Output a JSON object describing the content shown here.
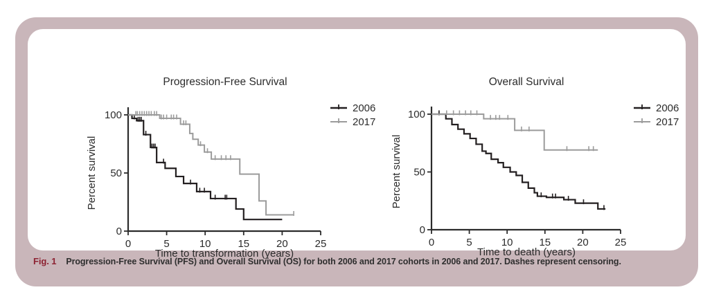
{
  "frame": {
    "fill": "#c9b6ba",
    "panel_fill": "#ffffff"
  },
  "caption": {
    "label": "Fig. 1",
    "label_color": "#8d2232",
    "text": "Progression-Free Survival (PFS) and Overall Survival (OS) for both 2006 and 2017 cohorts in 2006 and 2017.  Dashes represent censoring."
  },
  "chart_data": [
    {
      "type": "line",
      "subtype": "kaplan-meier-step",
      "title": "Progression-Free Survival",
      "xlabel": "Time to transformation (years)",
      "ylabel": "Percent survival",
      "xlim": [
        0,
        25
      ],
      "ylim": [
        0,
        100
      ],
      "xticks": [
        0,
        5,
        10,
        15,
        20,
        25
      ],
      "yticks": [
        0,
        50,
        100
      ],
      "grid": false,
      "legend_position": "right-of-plot-top",
      "series": [
        {
          "name": "2006",
          "color": "#231f20",
          "end_x": 20,
          "steps": [
            [
              0,
              100
            ],
            [
              0.5,
              97
            ],
            [
              1.1,
              95
            ],
            [
              2,
              83
            ],
            [
              2.9,
              72
            ],
            [
              3.7,
              59
            ],
            [
              4.8,
              54
            ],
            [
              6.2,
              47
            ],
            [
              7.2,
              41
            ],
            [
              8.9,
              34
            ],
            [
              10.7,
              28
            ],
            [
              14,
              19
            ],
            [
              15,
              10
            ]
          ],
          "censor_marks": [
            [
              0.8,
              97
            ],
            [
              1.3,
              95
            ],
            [
              1.5,
              95
            ],
            [
              1.7,
              95
            ],
            [
              2.3,
              83
            ],
            [
              3.1,
              72
            ],
            [
              3.3,
              72
            ],
            [
              3.5,
              72
            ],
            [
              4.6,
              59
            ],
            [
              8.1,
              41
            ],
            [
              9.3,
              34
            ],
            [
              9.9,
              34
            ],
            [
              11.3,
              28
            ],
            [
              12.6,
              28
            ],
            [
              12.8,
              28
            ]
          ]
        },
        {
          "name": "2017",
          "color": "#9b9b9b",
          "end_x": 21.5,
          "steps": [
            [
              0,
              100
            ],
            [
              4.1,
              97
            ],
            [
              6.8,
              92
            ],
            [
              8,
              84
            ],
            [
              8.4,
              79
            ],
            [
              9.1,
              74
            ],
            [
              9.9,
              68
            ],
            [
              10.8,
              62
            ],
            [
              14.5,
              49
            ],
            [
              17,
              26
            ],
            [
              17.9,
              14
            ]
          ],
          "censor_marks": [
            [
              1,
              100
            ],
            [
              1.2,
              100
            ],
            [
              1.5,
              100
            ],
            [
              1.8,
              100
            ],
            [
              2.1,
              100
            ],
            [
              2.4,
              100
            ],
            [
              2.7,
              100
            ],
            [
              3,
              100
            ],
            [
              3.4,
              100
            ],
            [
              3.7,
              100
            ],
            [
              4.3,
              97
            ],
            [
              4.6,
              97
            ],
            [
              5,
              97
            ],
            [
              5.6,
              97
            ],
            [
              5.9,
              97
            ],
            [
              6.3,
              97
            ],
            [
              7.2,
              92
            ],
            [
              7.5,
              92
            ],
            [
              9.4,
              74
            ],
            [
              10.3,
              68
            ],
            [
              11.3,
              62
            ],
            [
              12.1,
              62
            ],
            [
              12.7,
              62
            ],
            [
              13.3,
              62
            ],
            [
              21.5,
              14
            ]
          ]
        }
      ]
    },
    {
      "type": "line",
      "subtype": "kaplan-meier-step",
      "title": "Overall Survival",
      "xlabel": "Time to death (years)",
      "ylabel": "Percent survival",
      "xlim": [
        0,
        25
      ],
      "ylim": [
        0,
        100
      ],
      "xticks": [
        0,
        5,
        10,
        15,
        20,
        25
      ],
      "yticks": [
        0,
        50,
        100
      ],
      "grid": false,
      "legend_position": "right-of-plot-top",
      "series": [
        {
          "name": "2006",
          "color": "#231f20",
          "end_x": 23,
          "steps": [
            [
              0,
              100
            ],
            [
              1.9,
              96
            ],
            [
              2.7,
              91
            ],
            [
              3.5,
              87
            ],
            [
              4.3,
              83
            ],
            [
              5.1,
              79
            ],
            [
              5.9,
              74
            ],
            [
              6.7,
              68
            ],
            [
              7.2,
              66
            ],
            [
              7.9,
              61
            ],
            [
              8.8,
              58
            ],
            [
              9.5,
              54
            ],
            [
              10.4,
              50
            ],
            [
              11.2,
              47
            ],
            [
              12,
              41
            ],
            [
              12.8,
              36
            ],
            [
              13.6,
              32
            ],
            [
              14,
              29
            ],
            [
              15.2,
              28
            ],
            [
              17.5,
              26
            ],
            [
              19,
              23
            ],
            [
              22,
              18
            ]
          ],
          "censor_marks": [
            [
              1,
              100
            ],
            [
              14.5,
              29
            ],
            [
              16,
              28
            ],
            [
              16.4,
              28
            ],
            [
              18.1,
              26
            ],
            [
              20.1,
              23
            ],
            [
              22.8,
              18
            ]
          ]
        },
        {
          "name": "2017",
          "color": "#9b9b9b",
          "end_x": 22,
          "steps": [
            [
              0,
              100
            ],
            [
              6.9,
              96
            ],
            [
              11,
              86
            ],
            [
              14.9,
              69
            ]
          ],
          "censor_marks": [
            [
              2,
              100
            ],
            [
              2.9,
              100
            ],
            [
              3.7,
              100
            ],
            [
              4.5,
              100
            ],
            [
              5.2,
              100
            ],
            [
              6,
              100
            ],
            [
              7.8,
              96
            ],
            [
              8.5,
              96
            ],
            [
              9,
              96
            ],
            [
              10.1,
              96
            ],
            [
              11.9,
              86
            ],
            [
              12.9,
              86
            ],
            [
              17.9,
              69
            ],
            [
              20.8,
              69
            ],
            [
              21.4,
              69
            ]
          ]
        }
      ]
    }
  ]
}
